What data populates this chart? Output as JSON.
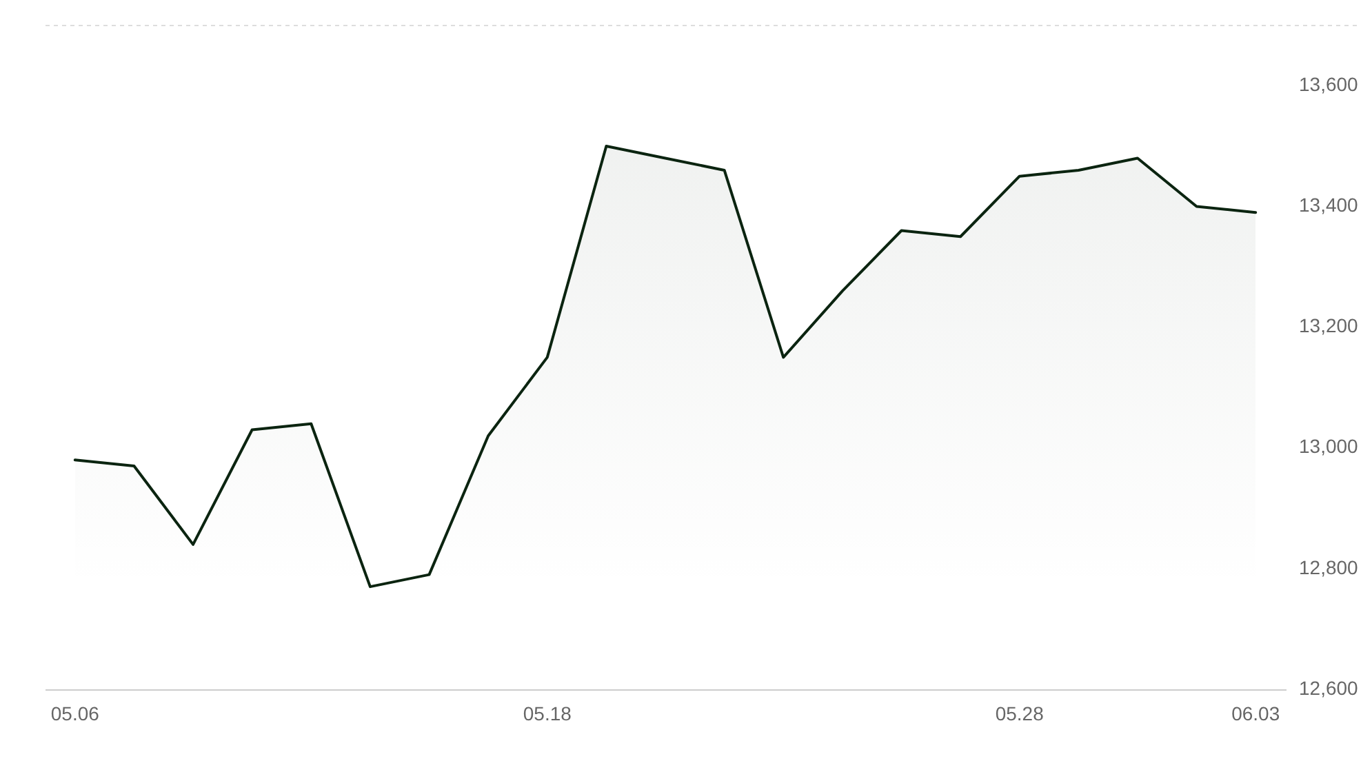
{
  "chart_data": {
    "type": "area",
    "categories": [
      "05.06",
      null,
      null,
      null,
      null,
      null,
      null,
      null,
      "05.18",
      null,
      null,
      null,
      null,
      null,
      null,
      null,
      "05.28",
      null,
      null,
      null,
      "06.03"
    ],
    "values": [
      12980,
      12970,
      12840,
      13030,
      13040,
      12770,
      12790,
      13020,
      13150,
      13500,
      13480,
      13460,
      13150,
      13260,
      13360,
      13350,
      13450,
      13460,
      13480,
      13400,
      13390
    ],
    "color": "#0b2410",
    "ylim": [
      12600,
      13700
    ],
    "yticks": [
      {
        "value": 12600,
        "label": "12,600"
      },
      {
        "value": 12800,
        "label": "12,800"
      },
      {
        "value": 13000,
        "label": "13,000"
      },
      {
        "value": 13200,
        "label": "13,200"
      },
      {
        "value": 13400,
        "label": "13,400"
      },
      {
        "value": 13600,
        "label": "13,600"
      }
    ],
    "marker": "none",
    "line_style": "solid"
  }
}
